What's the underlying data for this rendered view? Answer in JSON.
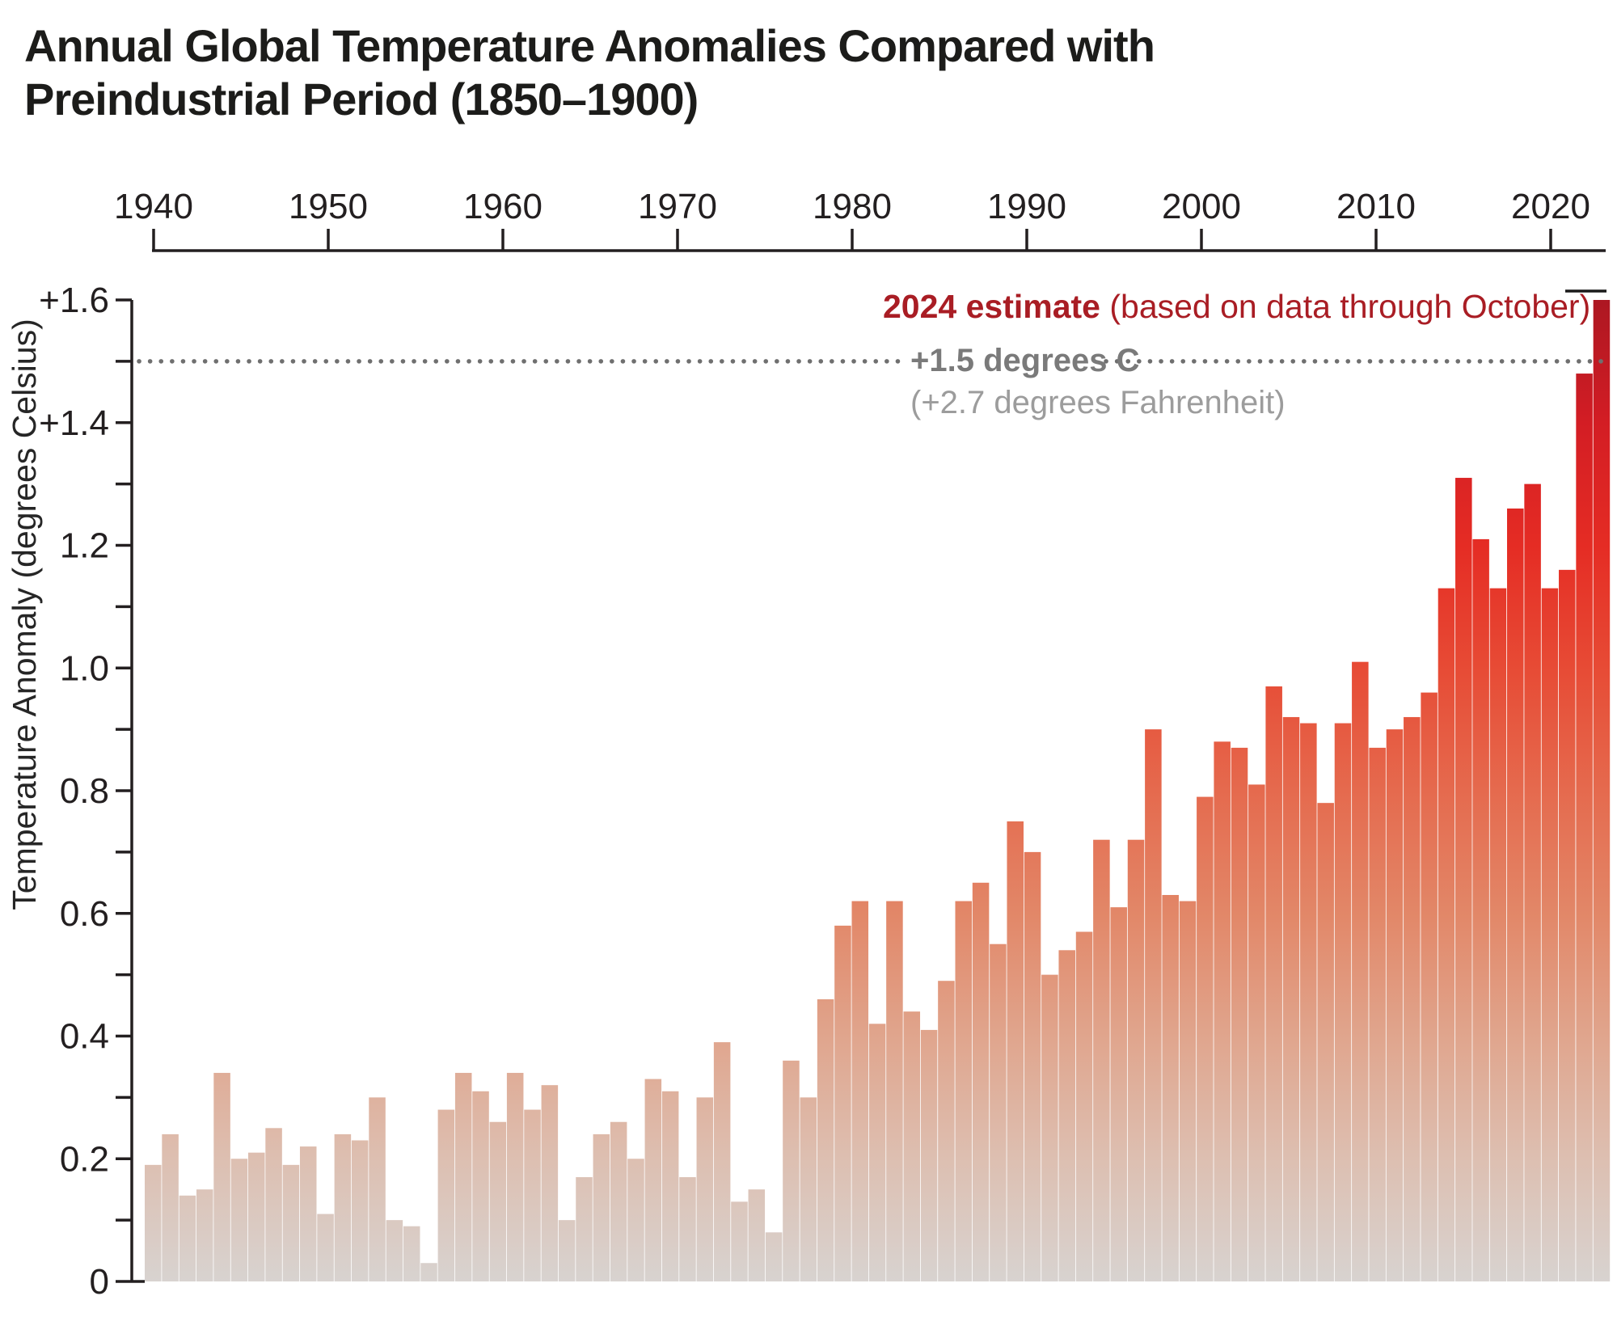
{
  "title": {
    "line1": "Annual Global Temperature Anomalies Compared with",
    "line2": "Preindustrial Period (1850–1900)"
  },
  "annotations": {
    "estimate_bold": "2024 estimate",
    "estimate_rest": " (based on data through October)",
    "threshold_label": "+1.5 degrees C",
    "threshold_sub": "(+2.7 degrees Fahrenheit)"
  },
  "x_axis": {
    "tick_labels": [
      "1940",
      "1950",
      "1960",
      "1970",
      "1980",
      "1990",
      "2000",
      "2010",
      "2020"
    ]
  },
  "y_axis": {
    "title": "Temperature Anomaly (degrees Celsius)",
    "tick_labels": [
      "0",
      "0.2",
      "0.4",
      "0.6",
      "0.8",
      "1.0",
      "1.2",
      "+1.4",
      "+1.6"
    ],
    "tick_values": [
      0,
      0.2,
      0.4,
      0.6,
      0.8,
      1.0,
      1.2,
      1.4,
      1.6
    ]
  },
  "colors": {
    "axis": "#231f20",
    "title_text": "#1c1c1a",
    "estimate_text": "#a91d24",
    "threshold_text": "#7a7a7a",
    "fahrenheit_text": "#9c9c9c",
    "dotted_line": "#6f6f6f",
    "leader_line": "#1a1a1a",
    "gradient_stops": [
      {
        "value": 0.0,
        "color": "#d8d3d0"
      },
      {
        "value": 0.2,
        "color": "#ddbfb1"
      },
      {
        "value": 0.4,
        "color": "#e0a58d"
      },
      {
        "value": 0.6,
        "color": "#e28768"
      },
      {
        "value": 0.8,
        "color": "#e56a4e"
      },
      {
        "value": 1.0,
        "color": "#e74b35"
      },
      {
        "value": 1.2,
        "color": "#e52c24"
      },
      {
        "value": 1.4,
        "color": "#d31d24"
      },
      {
        "value": 1.6,
        "color": "#ad1722"
      }
    ]
  },
  "chart_data": {
    "type": "bar",
    "title": "Annual Global Temperature Anomalies Compared with Preindustrial Period (1850–1900)",
    "xlabel": "",
    "ylabel": "Temperature Anomaly (degrees Celsius)",
    "ylim": [
      0,
      1.6
    ],
    "x_tick_years": [
      1940,
      1950,
      1960,
      1970,
      1980,
      1990,
      2000,
      2010,
      2020
    ],
    "threshold_value": 1.5,
    "year_range": [
      1940,
      2024
    ],
    "values": [
      0.19,
      0.24,
      0.14,
      0.15,
      0.34,
      0.2,
      0.21,
      0.25,
      0.19,
      0.22,
      0.11,
      0.24,
      0.23,
      0.3,
      0.1,
      0.09,
      0.03,
      0.28,
      0.34,
      0.31,
      0.26,
      0.34,
      0.28,
      0.32,
      0.1,
      0.17,
      0.24,
      0.26,
      0.2,
      0.33,
      0.31,
      0.17,
      0.3,
      0.39,
      0.13,
      0.15,
      0.08,
      0.36,
      0.3,
      0.46,
      0.58,
      0.62,
      0.42,
      0.62,
      0.44,
      0.41,
      0.49,
      0.62,
      0.65,
      0.55,
      0.75,
      0.7,
      0.5,
      0.54,
      0.57,
      0.72,
      0.61,
      0.72,
      0.9,
      0.63,
      0.62,
      0.79,
      0.88,
      0.87,
      0.81,
      0.97,
      0.92,
      0.91,
      0.78,
      0.91,
      1.01,
      0.87,
      0.9,
      0.92,
      0.96,
      1.13,
      1.31,
      1.21,
      1.13,
      1.26,
      1.3,
      1.13,
      1.16,
      1.48,
      1.6
    ],
    "notes": {
      "estimate": "2024 estimate (based on data through October)",
      "threshold": "+1.5 degrees C (+2.7 degrees Fahrenheit)"
    },
    "legend": "none",
    "grid": "off"
  }
}
